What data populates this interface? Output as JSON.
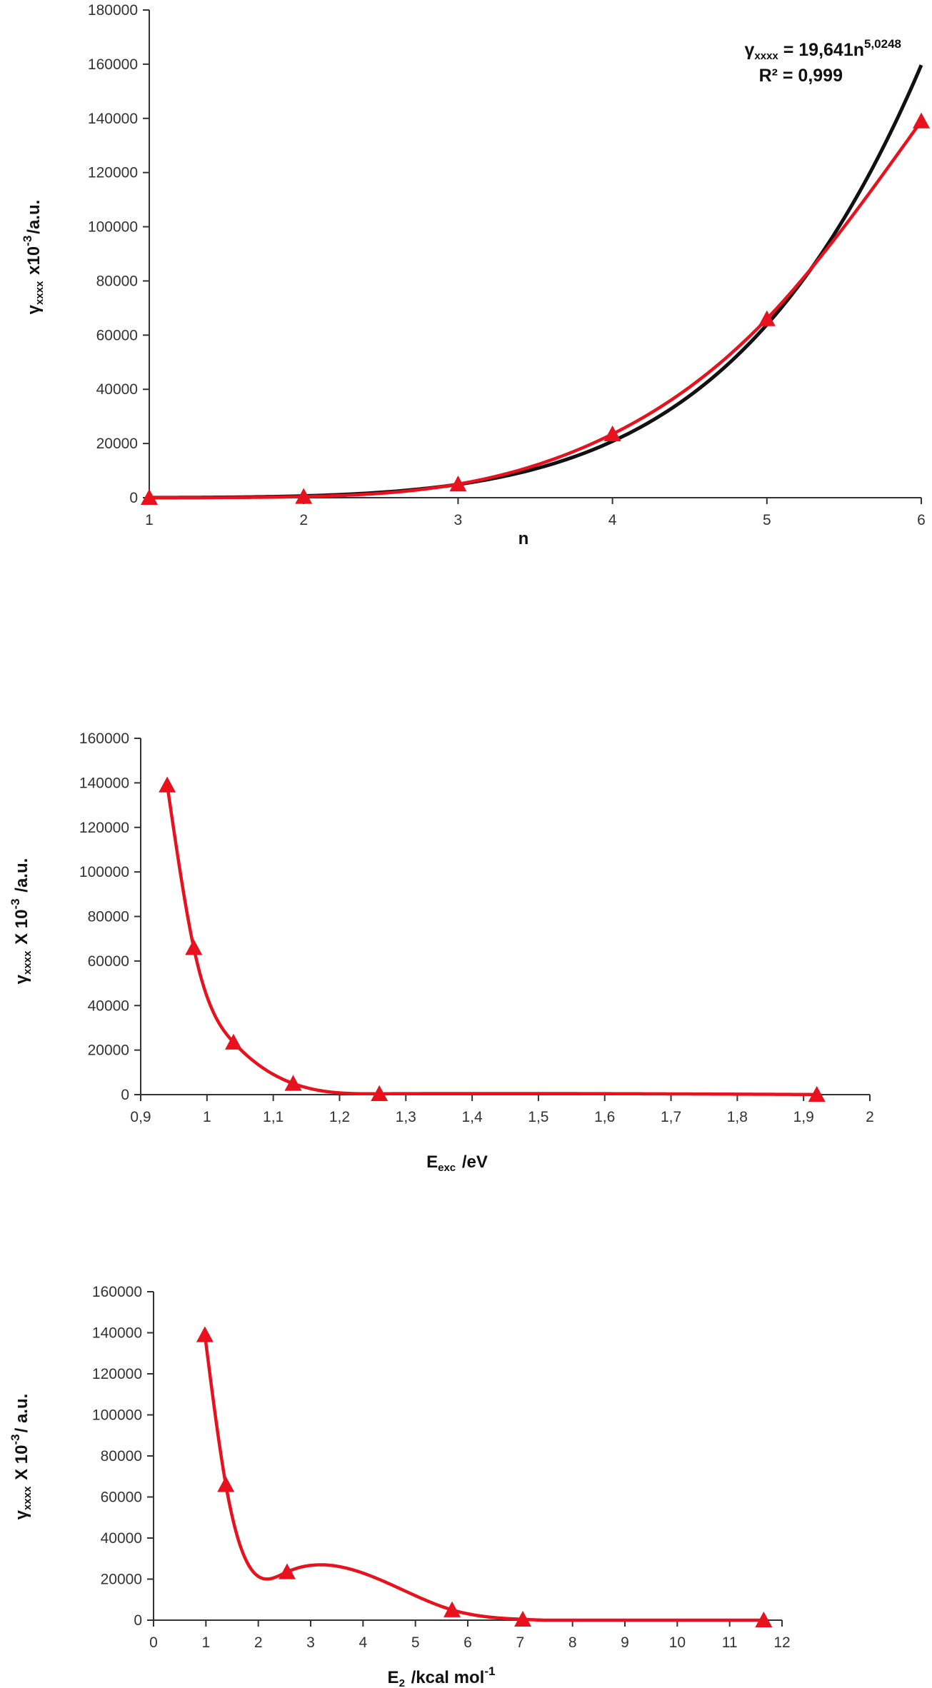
{
  "colors": {
    "series": "#e8121f",
    "fit": "#111111",
    "axis": "#333333"
  },
  "chart_data": [
    {
      "type": "line",
      "xlabel": "n",
      "ylabel": {
        "main": "γ",
        "sub": "xxxx",
        "mid": " x10",
        "sup": "-3",
        "tail": "/a.u."
      },
      "xlim": [
        1,
        6
      ],
      "ylim": [
        0,
        180000
      ],
      "xticks": [
        "1",
        "2",
        "3",
        "4",
        "5",
        "6"
      ],
      "yticks": [
        "0",
        "20000",
        "40000",
        "60000",
        "80000",
        "100000",
        "120000",
        "140000",
        "160000",
        "180000"
      ],
      "series": [
        {
          "x": [
            1,
            2,
            3,
            4,
            5,
            6
          ],
          "y": [
            50,
            400,
            5000,
            23500,
            66000,
            139000
          ],
          "marker": "triangle"
        }
      ],
      "fit": {
        "a": 19.641,
        "b": 5.0248,
        "equation": {
          "lhs_main": "γ",
          "lhs_sub": "xxxx",
          "rhs": " = 19,641n",
          "exp": "5,0248"
        },
        "r2": "R² = 0,999"
      }
    },
    {
      "type": "line",
      "xlabel": {
        "main": "E",
        "sub": "exc",
        "tail": " /eV"
      },
      "ylabel": {
        "main": "γ",
        "sub": "xxxx",
        "mid": " X 10",
        "sup": "-3",
        "tail": " /a.u."
      },
      "xlim": [
        0.9,
        2
      ],
      "ylim": [
        0,
        160000
      ],
      "xticks": [
        "0,9",
        "1",
        "1,1",
        "1,2",
        "1,3",
        "1,4",
        "1,5",
        "1,6",
        "1,7",
        "1,8",
        "1,9",
        "2"
      ],
      "yticks": [
        "0",
        "20000",
        "40000",
        "60000",
        "80000",
        "100000",
        "120000",
        "140000",
        "160000"
      ],
      "series": [
        {
          "x": [
            0.94,
            0.98,
            1.04,
            1.13,
            1.26,
            1.92
          ],
          "y": [
            139000,
            66000,
            23500,
            5000,
            400,
            50
          ],
          "marker": "triangle"
        }
      ]
    },
    {
      "type": "line",
      "xlabel": {
        "main": "E",
        "sub": "2",
        "tail": " /kcal mol",
        "sup": "-1"
      },
      "ylabel": {
        "main": "γ",
        "sub": "xxxx",
        "mid": " X 10",
        "sup": "-3",
        "tail": "/ a.u."
      },
      "xlim": [
        0,
        12
      ],
      "ylim": [
        0,
        160000
      ],
      "xticks": [
        "0",
        "1",
        "2",
        "3",
        "4",
        "5",
        "6",
        "7",
        "8",
        "9",
        "10",
        "11",
        "12"
      ],
      "yticks": [
        "0",
        "20000",
        "40000",
        "60000",
        "80000",
        "100000",
        "120000",
        "140000",
        "160000"
      ],
      "series": [
        {
          "x": [
            0.98,
            1.38,
            2.55,
            5.7,
            7.05,
            11.65
          ],
          "y": [
            139000,
            66000,
            23500,
            5000,
            400,
            50
          ],
          "marker": "triangle"
        }
      ]
    }
  ]
}
